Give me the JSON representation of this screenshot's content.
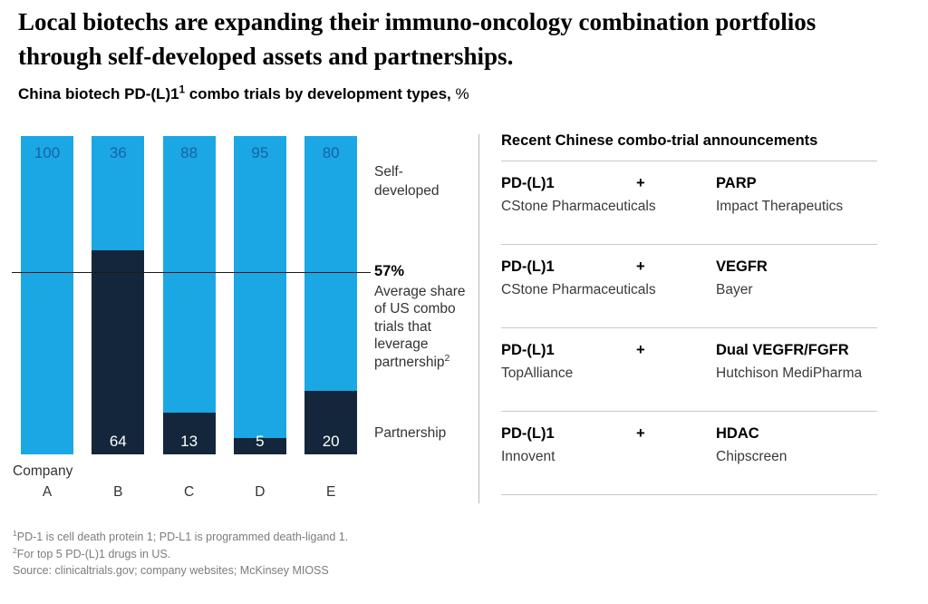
{
  "page": {
    "title": "Local biotechs are expanding their immuno-oncology combination portfolios through self-developed assets and partnerships.",
    "subtitle_prefix": "China biotech PD-(L)1",
    "subtitle_sup": "1",
    "subtitle_rest": " combo trials by development types, ",
    "subtitle_unit": "%"
  },
  "chart_data": {
    "type": "bar",
    "subtype": "stacked-vertical",
    "categories": [
      "A",
      "B",
      "C",
      "D",
      "E"
    ],
    "category_axis_label": "Company",
    "series": [
      {
        "name": "Self-developed",
        "color": "#1BA7E4",
        "values": [
          100,
          36,
          88,
          95,
          80
        ]
      },
      {
        "name": "Partnership",
        "color": "#14263B",
        "values": [
          0,
          64,
          13,
          5,
          20
        ]
      }
    ],
    "ylim": [
      0,
      100
    ],
    "unit": "%",
    "grid": false,
    "reference_line": {
      "value": 57,
      "label": "57%",
      "description": "Average share of US combo trials that leverage partnership",
      "footnote_mark": "2"
    }
  },
  "chart_labels": {
    "self_developed": "Self-developed",
    "partnership": "Partnership",
    "company": "Company",
    "ref_value": "57%",
    "ref_desc": "Average share of US combo trials that leverage partnership",
    "ref_sup": "2"
  },
  "announcements": {
    "header": "Recent Chinese combo-trial announcements",
    "plus": "+",
    "rows": [
      {
        "left_term": "PD-(L)1",
        "left_company": "CStone Pharmaceuticals",
        "right_term": "PARP",
        "right_company": "Impact Therapeutics"
      },
      {
        "left_term": "PD-(L)1",
        "left_company": "CStone Pharmaceuticals",
        "right_term": "VEGFR",
        "right_company": "Bayer"
      },
      {
        "left_term": "PD-(L)1",
        "left_company": "TopAlliance",
        "right_term": "Dual VEGFR/FGFR",
        "right_company": "Hutchison MediPharma"
      },
      {
        "left_term": "PD-(L)1",
        "left_company": "Innovent",
        "right_term": "HDAC",
        "right_company": "Chipscreen"
      }
    ]
  },
  "footnotes": [
    {
      "mark": "1",
      "text": "PD-1 is cell death protein 1; PD-L1 is programmed death-ligand 1."
    },
    {
      "mark": "2",
      "text": "For top 5 PD-(L)1 drugs in US."
    },
    {
      "mark": "",
      "text": "Source: clinicaltrials.gov; company websites; McKinsey MIOSS"
    }
  ],
  "colors": {
    "self_developed_blue": "#1BA7E4",
    "partnership_navy": "#14263B",
    "bar_value_blue": "#1763A6",
    "reference_line": "#1a1a1a",
    "rule_gray": "#c9c9c9",
    "footnote_gray": "#7c7c7c"
  }
}
